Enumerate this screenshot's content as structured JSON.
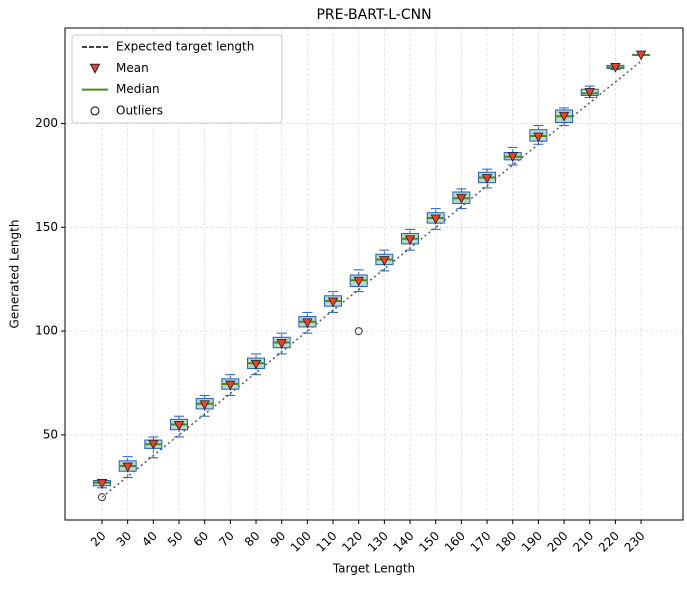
{
  "chart_data": {
    "type": "box",
    "title": "PRE-BART-L-CNN",
    "x_label": "Target Length",
    "y_label": "Generated Length",
    "categories": [
      "20",
      "30",
      "40",
      "50",
      "60",
      "70",
      "80",
      "90",
      "100",
      "110",
      "120",
      "130",
      "140",
      "150",
      "160",
      "170",
      "180",
      "190",
      "200",
      "210",
      "220",
      "230"
    ],
    "boxes": [
      {
        "whislo": 24.5,
        "q1": 25.5,
        "med": 27,
        "q3": 28,
        "whishi": 28.5,
        "mean": 26.5
      },
      {
        "whislo": 29.5,
        "q1": 32.5,
        "med": 35,
        "q3": 37.5,
        "whishi": 39.5,
        "mean": 34.5
      },
      {
        "whislo": 39,
        "q1": 43.5,
        "med": 45.5,
        "q3": 47.5,
        "whishi": 49,
        "mean": 45.5
      },
      {
        "whislo": 49,
        "q1": 52.5,
        "med": 55,
        "q3": 57.5,
        "whishi": 59,
        "mean": 54.5
      },
      {
        "whislo": 59,
        "q1": 62.5,
        "med": 65,
        "q3": 67.5,
        "whishi": 69,
        "mean": 64.5
      },
      {
        "whislo": 69,
        "q1": 72,
        "med": 74.5,
        "q3": 77,
        "whishi": 79,
        "mean": 74
      },
      {
        "whislo": 79,
        "q1": 82,
        "med": 84.5,
        "q3": 87,
        "whishi": 89,
        "mean": 84
      },
      {
        "whislo": 89,
        "q1": 92,
        "med": 94.5,
        "q3": 97,
        "whishi": 99,
        "mean": 94
      },
      {
        "whislo": 99,
        "q1": 102,
        "med": 104.5,
        "q3": 107,
        "whishi": 109,
        "mean": 104
      },
      {
        "whislo": 109,
        "q1": 112,
        "med": 114.5,
        "q3": 117,
        "whishi": 119,
        "mean": 114
      },
      {
        "whislo": 119,
        "q1": 121.5,
        "med": 124.5,
        "q3": 127,
        "whishi": 129.5,
        "mean": 124
      },
      {
        "whislo": 129,
        "q1": 132,
        "med": 134.5,
        "q3": 137,
        "whishi": 139,
        "mean": 134
      },
      {
        "whislo": 139,
        "q1": 142,
        "med": 144.5,
        "q3": 147,
        "whishi": 149,
        "mean": 144
      },
      {
        "whislo": 149,
        "q1": 152,
        "med": 154.5,
        "q3": 157,
        "whishi": 159,
        "mean": 154
      },
      {
        "whislo": 159,
        "q1": 161.5,
        "med": 164,
        "q3": 167,
        "whishi": 168.5,
        "mean": 164
      },
      {
        "whislo": 169,
        "q1": 171.5,
        "med": 174,
        "q3": 176.5,
        "whishi": 178,
        "mean": 173.5
      },
      {
        "whislo": 180,
        "q1": 182.5,
        "med": 184,
        "q3": 186,
        "whishi": 188.5,
        "mean": 184
      },
      {
        "whislo": 190,
        "q1": 191.5,
        "med": 194,
        "q3": 197,
        "whishi": 199,
        "mean": 193.5
      },
      {
        "whislo": 199,
        "q1": 200.5,
        "med": 203.5,
        "q3": 206.5,
        "whishi": 207.5,
        "mean": 203.5
      },
      {
        "whislo": 212.5,
        "q1": 213.5,
        "med": 214.5,
        "q3": 216.5,
        "whishi": 218,
        "mean": 215
      },
      {
        "whislo": 226,
        "q1": 226.5,
        "med": 227,
        "q3": 228,
        "whishi": 228,
        "mean": 227
      },
      {
        "whislo": 233,
        "q1": 233,
        "med": 233,
        "q3": 233,
        "whishi": 233,
        "mean": 233
      }
    ],
    "outliers": [
      [
        20
      ],
      [],
      [],
      [],
      [],
      [],
      [],
      [],
      [],
      [],
      [
        100
      ],
      [],
      [],
      [],
      [],
      [],
      [],
      [],
      [],
      [],
      [],
      []
    ],
    "ylim": [
      9,
      246
    ],
    "yticks": [
      50,
      100,
      150,
      200
    ],
    "grid": true,
    "box_color": "#1f5fbf",
    "box_fill": "#b9d6cf",
    "median_color": "#4d8a1b",
    "mean_color": "#e8412c",
    "expected_color": "#555555",
    "legend": {
      "position": "upper left",
      "entries": [
        "Expected target length",
        "Mean",
        "Median",
        "Outliers"
      ]
    }
  }
}
